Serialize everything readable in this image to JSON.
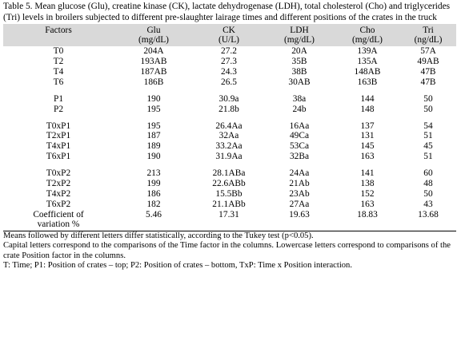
{
  "caption": "Table 5. Mean glucose (Glu), creatine kinase (CK), lactate dehydrogenase (LDH), total cholesterol (Cho) and triglycerides (Tri) levels in broilers subjected to different pre-slaughter lairage times and different positions of the crates in the truck",
  "headers": [
    {
      "name": "Factors",
      "unit": ""
    },
    {
      "name": "Glu",
      "unit": "(mg/dL)"
    },
    {
      "name": "CK",
      "unit": "(U/L)"
    },
    {
      "name": "LDH",
      "unit": "(mg/dL)"
    },
    {
      "name": "Cho",
      "unit": "(mg/dL)"
    },
    {
      "name": "Tri",
      "unit": "(ng/dL)"
    }
  ],
  "groups": [
    {
      "rows": [
        [
          "T0",
          "204A",
          "27.2",
          "20A",
          "139A",
          "57A"
        ],
        [
          "T2",
          "193AB",
          "27.3",
          "35B",
          "135A",
          "49AB"
        ],
        [
          "T4",
          "187AB",
          "24.3",
          "38B",
          "148AB",
          "47B"
        ],
        [
          "T6",
          "186B",
          "26.5",
          "30AB",
          "163B",
          "47B"
        ]
      ]
    },
    {
      "rows": [
        [
          "P1",
          "190",
          "30.9a",
          "38a",
          "144",
          "50"
        ],
        [
          "P2",
          "195",
          "21.8b",
          "24b",
          "148",
          "50"
        ]
      ]
    },
    {
      "rows": [
        [
          "T0xP1",
          "195",
          "26.4Aa",
          "16Aa",
          "137",
          "54"
        ],
        [
          "T2xP1",
          "187",
          "32Aa",
          "49Ca",
          "131",
          "51"
        ],
        [
          "T4xP1",
          "189",
          "33.2Aa",
          "53Ca",
          "145",
          "45"
        ],
        [
          "T6xP1",
          "190",
          "31.9Aa",
          "32Ba",
          "163",
          "51"
        ]
      ]
    },
    {
      "rows": [
        [
          "T0xP2",
          "213",
          "28.1ABa",
          "24Aa",
          "141",
          "60"
        ],
        [
          "T2xP2",
          "199",
          "22.6ABb",
          "21Ab",
          "138",
          "48"
        ],
        [
          "T4xP2",
          "186",
          "15.5Bb",
          "23Ab",
          "152",
          "50"
        ],
        [
          "T6xP2",
          "182",
          "21.1ABb",
          "27Aa",
          "163",
          "43"
        ]
      ]
    }
  ],
  "cv_row": {
    "label_line1": "Coefficient of",
    "label_line2": "variation %",
    "values": [
      "5.46",
      "17.31",
      "19.63",
      "18.83",
      "13.68"
    ]
  },
  "notes": [
    "Means followed by different letters differ statistically, according to the Tukey test (p<0.05).",
    "Capital letters correspond to the comparisons of the Time factor in the columns. Lowercase letters correspond to comparisons of the crate Position factor in the columns.",
    "T: Time; P1: Position of crates – top; P2: Position of crates – bottom, TxP: Time x Position interaction."
  ]
}
